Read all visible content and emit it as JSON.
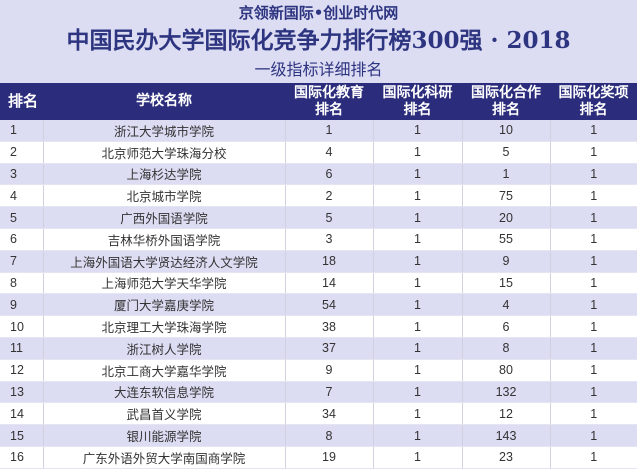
{
  "header": {
    "site_name": "京领新国际•创业时代网",
    "title": "中国民办大学国际化竞争力排行榜300强 · 2018",
    "subtitle": "一级指标详细排名"
  },
  "table": {
    "columns": [
      "排名",
      "学校名称",
      "国际化教育排名",
      "国际化科研排名",
      "国际化合作排名",
      "国际化奖项排名"
    ],
    "column_lines": [
      [
        "排名"
      ],
      [
        "学校名称"
      ],
      [
        "国际化教育",
        "排名"
      ],
      [
        "国际化科研",
        "排名"
      ],
      [
        "国际化合作",
        "排名"
      ],
      [
        "国际化奖项",
        "排名"
      ]
    ],
    "rows": [
      {
        "rank": "1",
        "name": "浙江大学城市学院",
        "edu": "1",
        "research": "1",
        "coop": "10",
        "awards": "1"
      },
      {
        "rank": "2",
        "name": "北京师范大学珠海分校",
        "edu": "4",
        "research": "1",
        "coop": "5",
        "awards": "1"
      },
      {
        "rank": "3",
        "name": "上海杉达学院",
        "edu": "6",
        "research": "1",
        "coop": "1",
        "awards": "1"
      },
      {
        "rank": "4",
        "name": "北京城市学院",
        "edu": "2",
        "research": "1",
        "coop": "75",
        "awards": "1"
      },
      {
        "rank": "5",
        "name": "广西外国语学院",
        "edu": "5",
        "research": "1",
        "coop": "20",
        "awards": "1"
      },
      {
        "rank": "6",
        "name": "吉林华桥外国语学院",
        "edu": "3",
        "research": "1",
        "coop": "55",
        "awards": "1"
      },
      {
        "rank": "7",
        "name": "上海外国语大学贤达经济人文学院",
        "edu": "18",
        "research": "1",
        "coop": "9",
        "awards": "1"
      },
      {
        "rank": "8",
        "name": "上海师范大学天华学院",
        "edu": "14",
        "research": "1",
        "coop": "15",
        "awards": "1"
      },
      {
        "rank": "9",
        "name": "厦门大学嘉庚学院",
        "edu": "54",
        "research": "1",
        "coop": "4",
        "awards": "1"
      },
      {
        "rank": "10",
        "name": "北京理工大学珠海学院",
        "edu": "38",
        "research": "1",
        "coop": "6",
        "awards": "1"
      },
      {
        "rank": "11",
        "name": "浙江树人学院",
        "edu": "37",
        "research": "1",
        "coop": "8",
        "awards": "1"
      },
      {
        "rank": "12",
        "name": "北京工商大学嘉华学院",
        "edu": "9",
        "research": "1",
        "coop": "80",
        "awards": "1"
      },
      {
        "rank": "13",
        "name": "大连东软信息学院",
        "edu": "7",
        "research": "1",
        "coop": "132",
        "awards": "1"
      },
      {
        "rank": "14",
        "name": "武昌首义学院",
        "edu": "34",
        "research": "1",
        "coop": "12",
        "awards": "1"
      },
      {
        "rank": "15",
        "name": "银川能源学院",
        "edu": "8",
        "research": "1",
        "coop": "143",
        "awards": "1"
      },
      {
        "rank": "16",
        "name": "广东外语外贸大学南国商学院",
        "edu": "19",
        "research": "1",
        "coop": "23",
        "awards": "1"
      }
    ]
  },
  "colors": {
    "header_bg": "#2b2d7c",
    "title_color": "#2e3580",
    "banner_bg": "#dcdcf3",
    "stripe_bg": "#dcdcf3"
  }
}
